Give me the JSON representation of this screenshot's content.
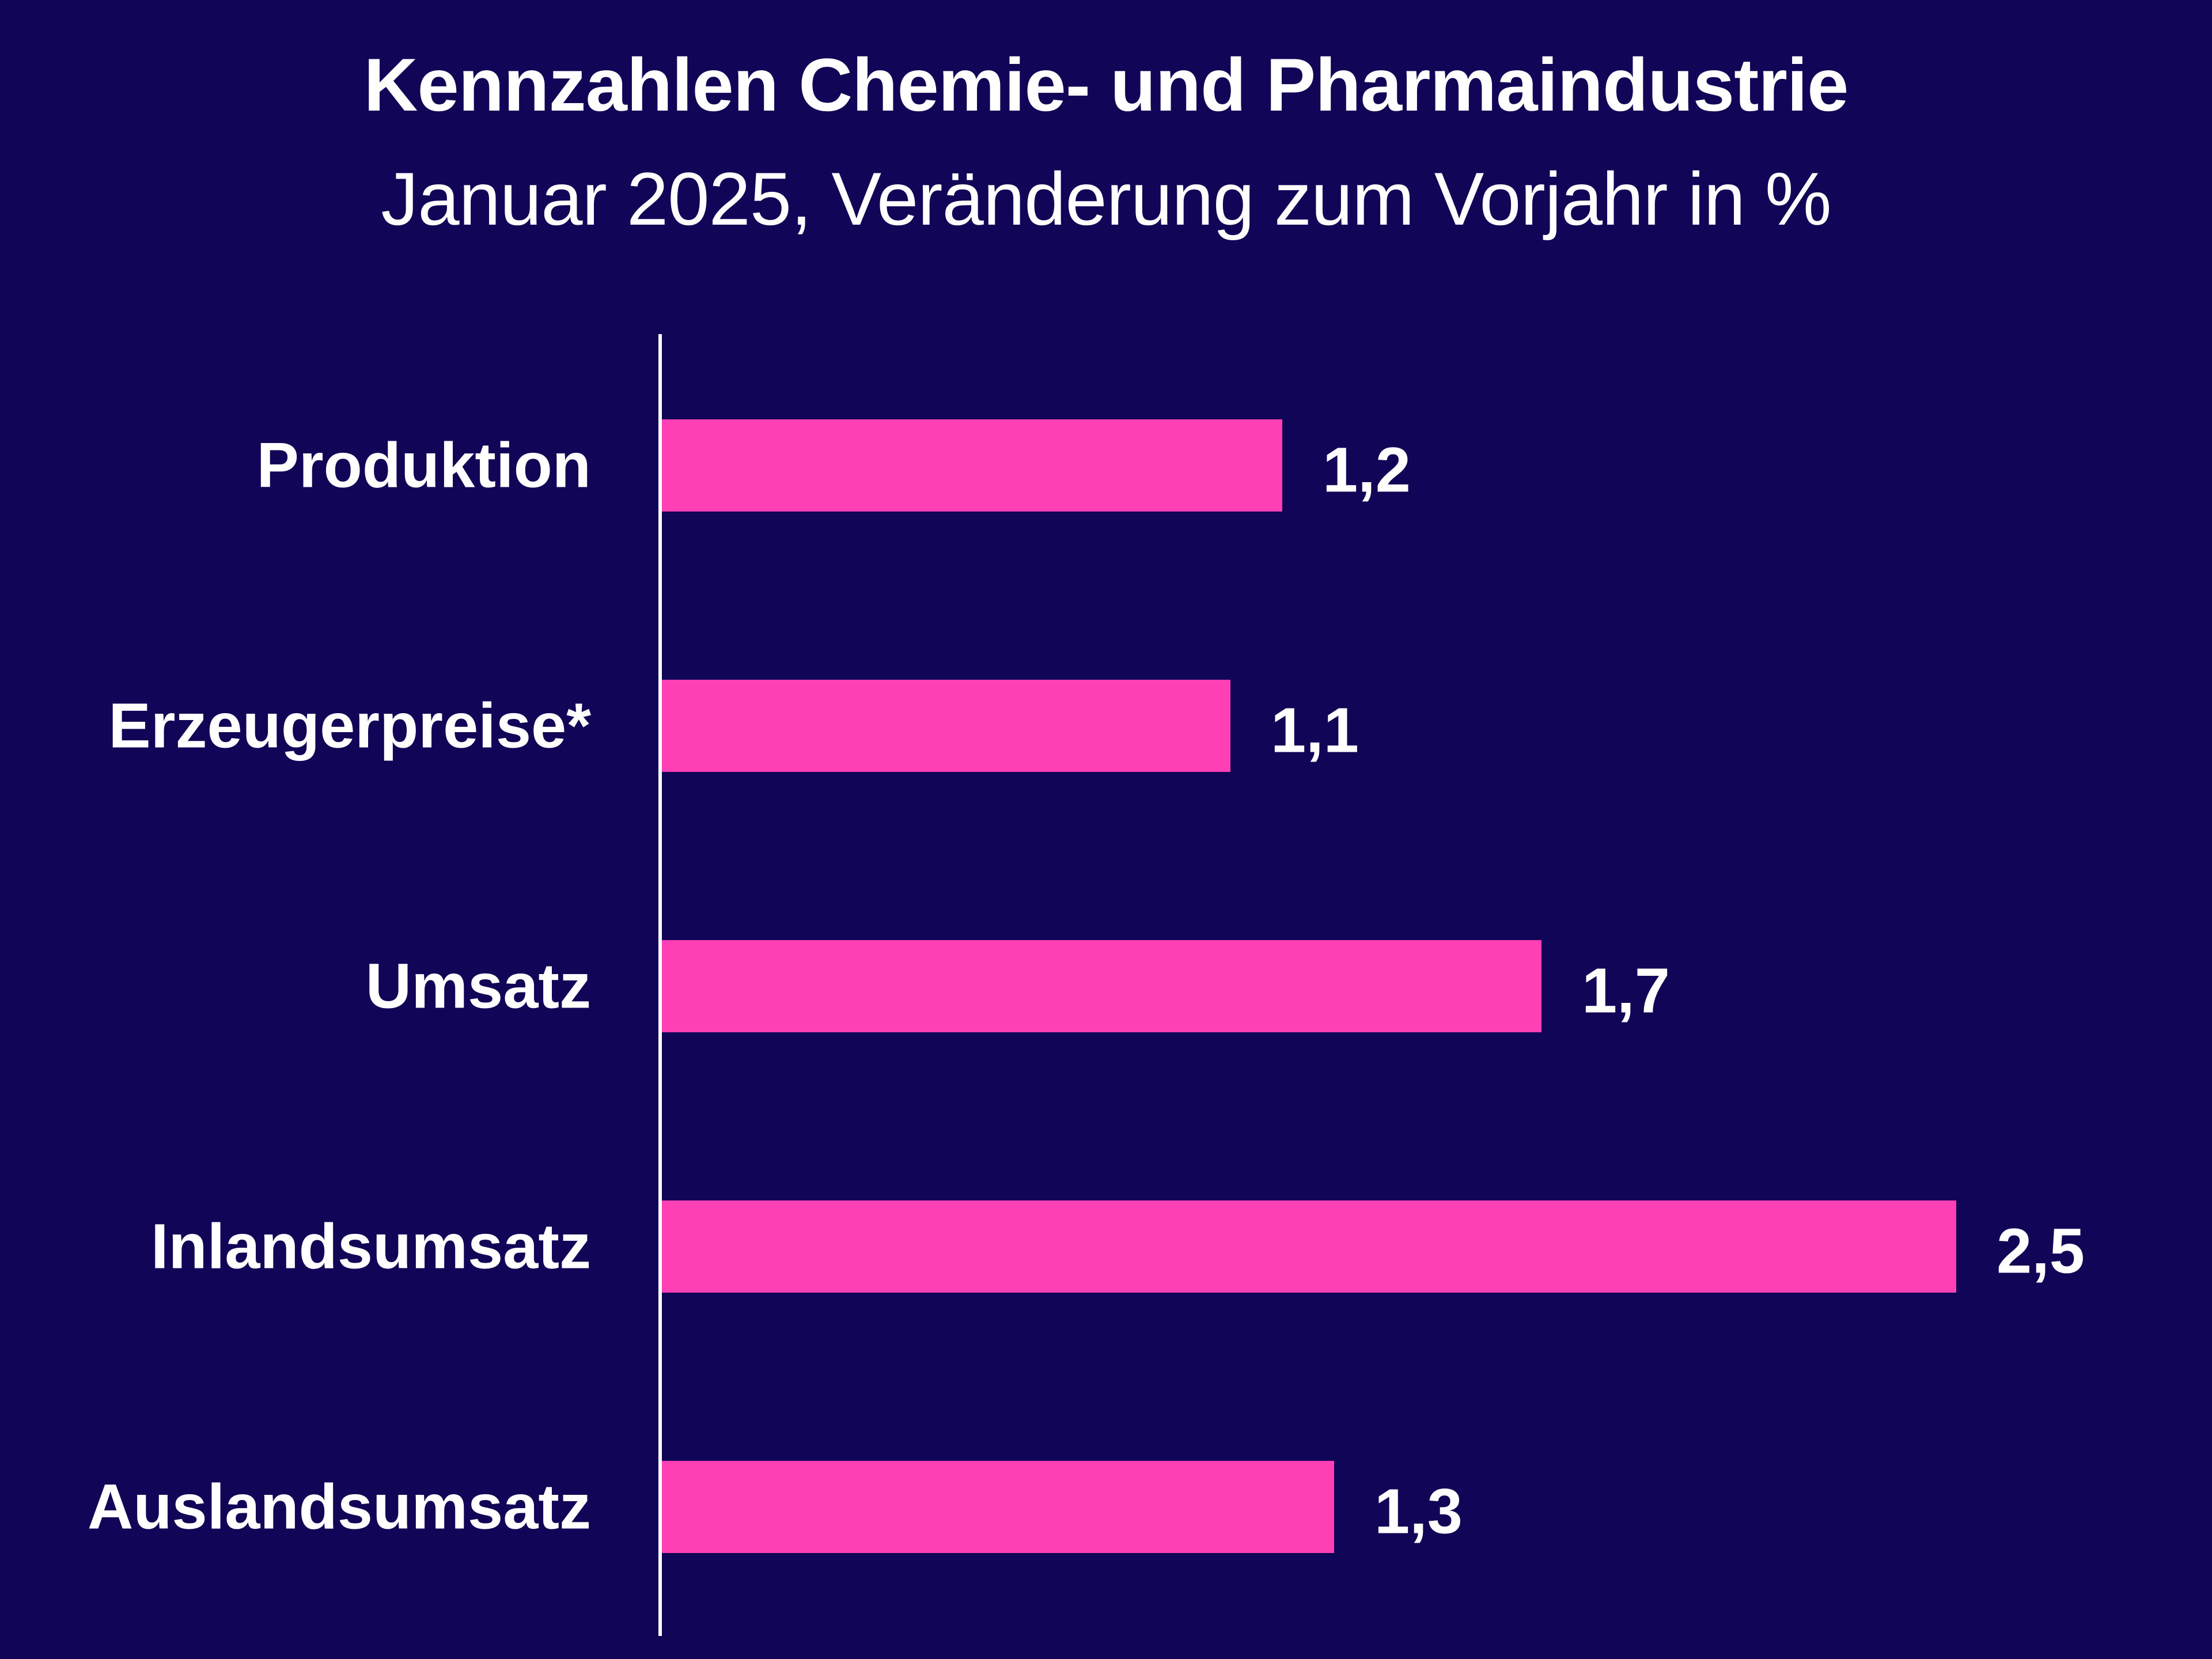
{
  "chart_data": {
    "type": "bar",
    "orientation": "horizontal",
    "title": "Kennzahlen Chemie- und Pharmaindustrie",
    "subtitle": "Januar 2025, Veränderung zum Vorjahr in %",
    "categories": [
      "Produktion",
      "Erzeugerpreise*",
      "Umsatz",
      "Inlandsumsatz",
      "Auslandsumsatz"
    ],
    "values": [
      1.2,
      1.1,
      1.7,
      2.5,
      1.3
    ],
    "value_labels": [
      "1,2",
      "1,1",
      "1,7",
      "2,5",
      "1,3"
    ],
    "xlim": [
      0,
      2.5
    ],
    "xlabel": "",
    "ylabel": "",
    "grid": false,
    "legend": "none"
  },
  "colors": {
    "background": "#100557",
    "bar": "#ff40b4",
    "text": "#ffffff",
    "axis": "#ffffff"
  }
}
